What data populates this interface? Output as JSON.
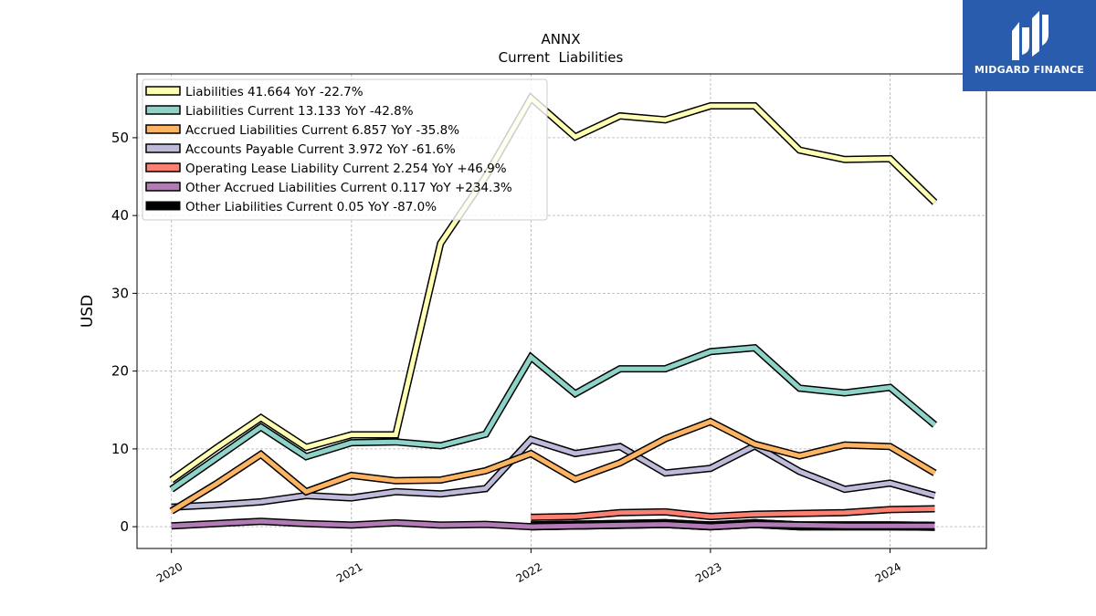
{
  "chart_data": {
    "type": "line",
    "title": "ANNX",
    "subtitle": "Current  Liabilities",
    "xlabel": "",
    "ylabel": "USD",
    "x_ticks": [
      "2020",
      "2021",
      "2022",
      "2023",
      "2024"
    ],
    "y_ticks": [
      "0",
      "10",
      "20",
      "30",
      "40",
      "50"
    ],
    "xlim": [
      "2019-10-23",
      "2024-07-15"
    ],
    "ylim": [
      -2.8,
      58.2
    ],
    "grid": true,
    "legend_position": "top-left",
    "x": [
      "2020-01-01",
      "2020-04-01",
      "2020-07-01",
      "2020-10-01",
      "2021-01-01",
      "2021-04-01",
      "2021-07-01",
      "2021-10-01",
      "2022-01-01",
      "2022-04-01",
      "2022-07-01",
      "2022-10-01",
      "2023-01-01",
      "2023-04-01",
      "2023-07-01",
      "2023-10-01",
      "2024-01-01",
      "2024-04-01"
    ],
    "series": [
      {
        "name": "Liabilities",
        "legend": "Liabilities  41.664 YoY -22.7%",
        "color": "#ffffb3",
        "values": [
          6.0,
          10.1,
          14.0,
          10.2,
          11.8,
          11.8,
          36.4,
          45.0,
          55.1,
          50.1,
          52.8,
          52.3,
          54.1,
          54.1,
          48.4,
          47.2,
          47.3,
          41.7
        ]
      },
      {
        "name": "Liabilities Current",
        "legend": "Liabilities Current  13.133 YoY -42.8%",
        "color": "#8dd3c7",
        "values": [
          4.8,
          8.8,
          12.8,
          9.0,
          10.8,
          10.9,
          10.4,
          11.9,
          21.8,
          17.1,
          20.3,
          20.3,
          22.5,
          23.0,
          17.8,
          17.2,
          17.9,
          13.1
        ]
      },
      {
        "name": "Accrued Liabilities Current",
        "legend": "Accrued Liabilities Current  6.857 YoY -35.8%",
        "color": "#fdb462",
        "values": [
          2.0,
          5.5,
          9.3,
          4.5,
          6.6,
          5.9,
          6.0,
          7.2,
          9.4,
          6.1,
          8.2,
          11.3,
          13.5,
          10.6,
          9.1,
          10.5,
          10.3,
          6.9
        ]
      },
      {
        "name": "Accounts Payable Current",
        "legend": "Accounts Payable Current  3.972 YoY -61.6%",
        "color": "#bebada",
        "values": [
          2.5,
          2.8,
          3.2,
          4.0,
          3.7,
          4.5,
          4.2,
          4.9,
          11.2,
          9.4,
          10.3,
          6.9,
          7.5,
          10.4,
          7.1,
          4.8,
          5.6,
          4.0
        ]
      },
      {
        "name": "Operating Lease Liability Current",
        "legend": "Operating Lease Liability Current  2.254 YoY +46.9%",
        "color": "#fb8072",
        "values": [
          null,
          null,
          null,
          null,
          null,
          null,
          null,
          null,
          1.2,
          1.3,
          1.8,
          1.9,
          1.3,
          1.6,
          1.7,
          1.8,
          2.2,
          2.3
        ]
      },
      {
        "name": "Other Accrued Liabilities Current",
        "legend": "Other Accrued Liabilities Current  0.117 YoY +234.3%",
        "color": "#b37bb5",
        "values": [
          0.1,
          0.4,
          0.7,
          0.4,
          0.2,
          0.5,
          0.2,
          0.3,
          0.0,
          0.1,
          0.2,
          0.3,
          0.0,
          0.3,
          0.2,
          0.1,
          0.1,
          0.1
        ]
      },
      {
        "name": "Other Liabilities Current",
        "legend": "Other Liabilities Current  0.05 YoY -87.0%",
        "color": "#000000",
        "values": [
          null,
          null,
          null,
          null,
          null,
          null,
          null,
          null,
          0.1,
          0.2,
          0.3,
          0.4,
          0.1,
          0.4,
          0.1,
          0.1,
          0.1,
          0.05
        ]
      }
    ]
  },
  "logo": {
    "text": "MIDGARD FINANCE",
    "bg_color": "#2a5cae"
  }
}
